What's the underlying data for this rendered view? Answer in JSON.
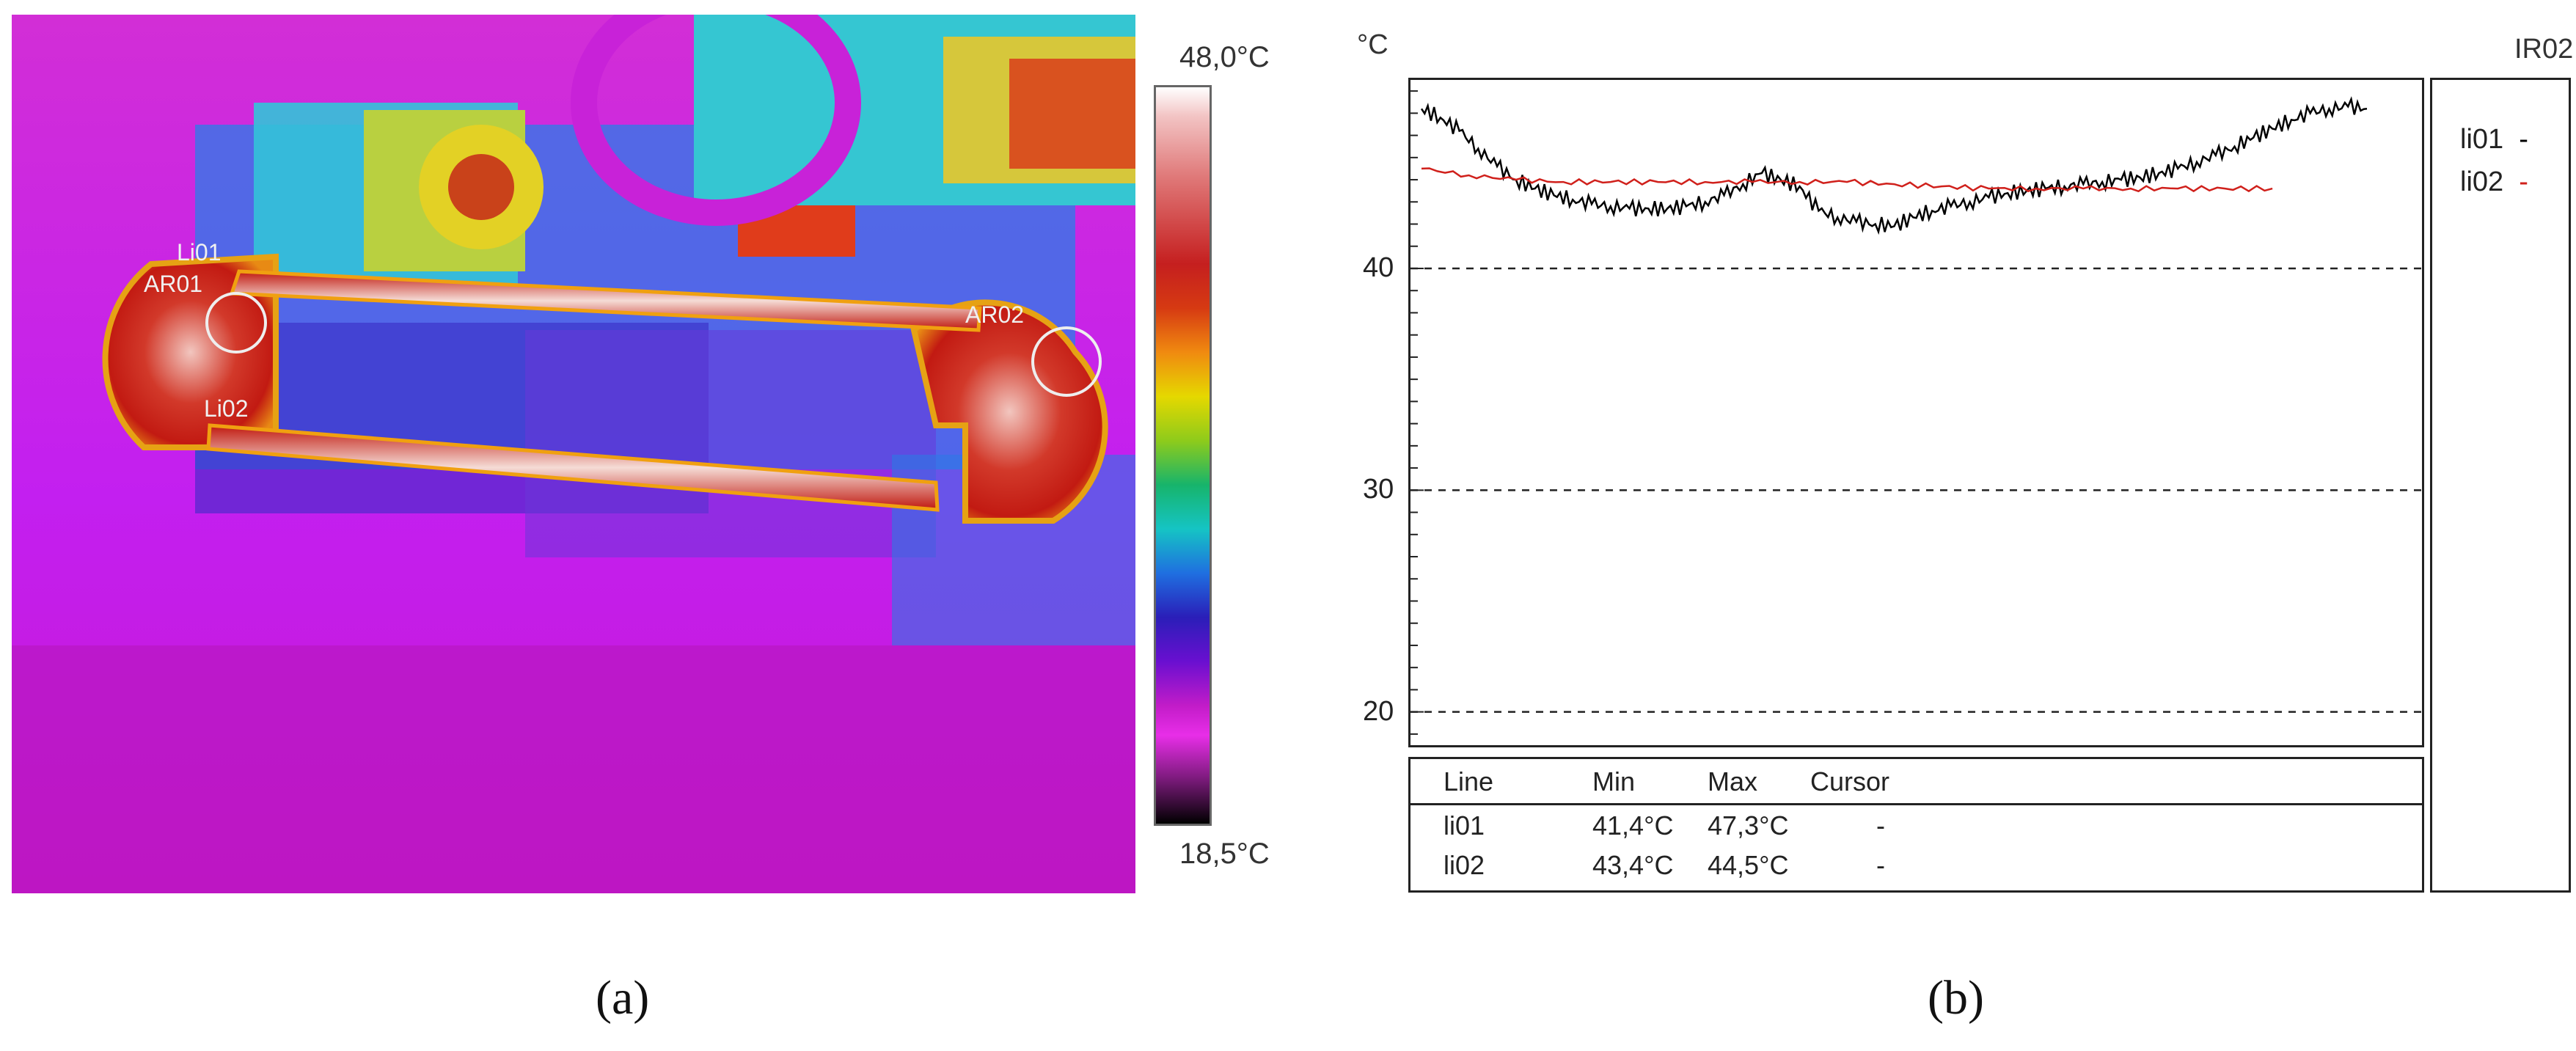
{
  "panel_a": {
    "caption": "(a)",
    "colorbar": {
      "max_label": "48,0°C",
      "min_label": "18,5°C"
    },
    "overlay_labels": {
      "li01": "Li01",
      "li02": "Li02",
      "ar01": "AR01",
      "ar02": "AR02"
    }
  },
  "panel_b": {
    "caption": "(b)",
    "y_unit": "°C",
    "source": "IR02",
    "legend": [
      {
        "name": "li01",
        "marker": "-",
        "color": "#000000"
      },
      {
        "name": "li02",
        "marker": "-",
        "color": "#d0201b"
      }
    ],
    "table": {
      "headers": [
        "Line",
        "Min",
        "Max",
        "Cursor"
      ],
      "rows": [
        [
          "li01",
          "41,4°C",
          "47,3°C",
          "-"
        ],
        [
          "li02",
          "43,4°C",
          "44,5°C",
          "-"
        ]
      ]
    }
  },
  "chart_data": {
    "type": "line",
    "title": "",
    "xlabel": "",
    "ylabel": "°C",
    "ylim": [
      18.5,
      48.5
    ],
    "xlim": [
      0,
      100
    ],
    "yticks": [
      20,
      30,
      40
    ],
    "grid": "dashed horizontal at labeled ticks",
    "legend_position": "right",
    "series": [
      {
        "name": "li01",
        "color": "#000000",
        "x": [
          0,
          2,
          4,
          6,
          8,
          10,
          12,
          14,
          16,
          18,
          20,
          22,
          24,
          26,
          28,
          30,
          32,
          34,
          36,
          38,
          40,
          42,
          44,
          46,
          48,
          50,
          52,
          54,
          56,
          58,
          60,
          62,
          64,
          66,
          68,
          70,
          72,
          74,
          76,
          78,
          80,
          82,
          84,
          86,
          88,
          90,
          92,
          94,
          96,
          98,
          100
        ],
        "y": [
          47.2,
          46.8,
          46.2,
          45.4,
          44.6,
          44.0,
          43.6,
          43.3,
          43.1,
          42.9,
          42.8,
          42.7,
          42.7,
          42.7,
          42.8,
          43.0,
          43.3,
          43.8,
          44.3,
          44.0,
          43.7,
          42.6,
          42.3,
          42.1,
          42.0,
          41.9,
          42.3,
          42.6,
          42.8,
          43.0,
          43.2,
          43.4,
          43.5,
          43.6,
          43.7,
          43.8,
          43.9,
          44.0,
          44.1,
          44.3,
          44.5,
          44.8,
          45.1,
          45.5,
          45.9,
          46.3,
          46.7,
          47.0,
          47.2,
          47.3,
          47.2
        ]
      },
      {
        "name": "li02",
        "color": "#d0201b",
        "x": [
          0,
          5,
          10,
          15,
          20,
          25,
          30,
          35,
          40,
          45,
          50,
          55,
          60,
          65,
          70,
          75,
          80,
          85,
          90
        ],
        "y": [
          44.5,
          44.2,
          44.0,
          43.9,
          43.9,
          43.9,
          43.9,
          43.9,
          43.9,
          43.9,
          43.8,
          43.7,
          43.6,
          43.6,
          43.6,
          43.6,
          43.6,
          43.6,
          43.6
        ]
      }
    ]
  }
}
